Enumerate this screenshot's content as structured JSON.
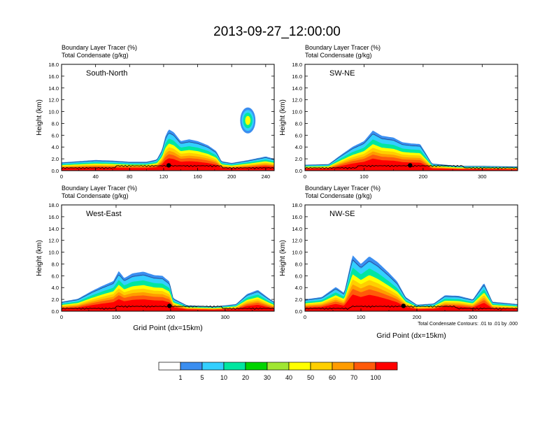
{
  "page": {
    "title": "2013-09-27_12:00:00"
  },
  "chart_data": [
    {
      "type": "heatmap",
      "panel_label": "South-North",
      "subtitle_lines": [
        "Boundary Layer Tracer   (%)",
        "Total Condensate   (g/kg)"
      ],
      "ylabel": "Height (km)",
      "xlabel": "",
      "xlim": [
        0,
        250
      ],
      "ylim": [
        0,
        18
      ],
      "xticks": [
        "0",
        "40",
        "80",
        "120",
        "160",
        "200",
        "240"
      ],
      "yticks": [
        "0.0",
        "2.0",
        "4.0",
        "6.0",
        "8.0",
        "10.0",
        "12.0",
        "14.0",
        "16.0",
        "18.0"
      ],
      "marker_x": 126,
      "tracer_profile": [
        [
          0,
          1.4
        ],
        [
          20,
          1.6
        ],
        [
          40,
          1.8
        ],
        [
          60,
          1.7
        ],
        [
          80,
          1.5
        ],
        [
          100,
          1.5
        ],
        [
          112,
          1.9
        ],
        [
          118,
          3.5
        ],
        [
          122,
          5.8
        ],
        [
          126,
          7.0
        ],
        [
          132,
          6.5
        ],
        [
          140,
          5.0
        ],
        [
          150,
          5.3
        ],
        [
          160,
          5.0
        ],
        [
          172,
          4.3
        ],
        [
          182,
          3.3
        ],
        [
          188,
          1.6
        ],
        [
          200,
          1.3
        ],
        [
          220,
          1.8
        ],
        [
          240,
          2.4
        ],
        [
          250,
          2.0
        ]
      ],
      "tracer_blobs": [
        {
          "x": 219,
          "y": 8.5,
          "dx": 9,
          "dy": 2.2
        }
      ]
    },
    {
      "type": "heatmap",
      "panel_label": "SW-NE",
      "subtitle_lines": [
        "Boundary Layer Tracer   (%)",
        "Total Condensate   (g/kg)"
      ],
      "ylabel": "Height (km)",
      "xlabel": "",
      "xlim": [
        0,
        360
      ],
      "ylim": [
        0,
        18
      ],
      "xticks": [
        "0",
        "100",
        "200",
        "300"
      ],
      "yticks": [
        "0.0",
        "2.0",
        "4.0",
        "6.0",
        "8.0",
        "10.0",
        "12.0",
        "14.0",
        "16.0",
        "18.0"
      ],
      "marker_x": 178,
      "tracer_profile": [
        [
          0,
          1.0
        ],
        [
          40,
          1.1
        ],
        [
          60,
          2.6
        ],
        [
          80,
          4.0
        ],
        [
          100,
          5.0
        ],
        [
          115,
          6.8
        ],
        [
          130,
          5.9
        ],
        [
          150,
          5.6
        ],
        [
          165,
          4.8
        ],
        [
          180,
          4.6
        ],
        [
          195,
          4.5
        ],
        [
          205,
          2.9
        ],
        [
          215,
          1.2
        ],
        [
          260,
          0.8
        ],
        [
          300,
          0.8
        ],
        [
          360,
          0.7
        ]
      ],
      "tracer_blobs": []
    },
    {
      "type": "heatmap",
      "panel_label": "West-East",
      "subtitle_lines": [
        "Boundary Layer Tracer   (%)",
        "Total Condensate   (g/kg)"
      ],
      "ylabel": "Height (km)",
      "xlabel": "Grid Point (dx=15km)",
      "xlim": [
        0,
        390
      ],
      "ylim": [
        0,
        18
      ],
      "xticks": [
        "0",
        "100",
        "200",
        "300"
      ],
      "yticks": [
        "0.0",
        "2.0",
        "4.0",
        "6.0",
        "8.0",
        "10.0",
        "12.0",
        "14.0",
        "16.0",
        "18.0"
      ],
      "marker_x": 198,
      "tracer_profile": [
        [
          0,
          1.6
        ],
        [
          30,
          2.1
        ],
        [
          55,
          3.4
        ],
        [
          75,
          4.3
        ],
        [
          95,
          5.1
        ],
        [
          105,
          6.8
        ],
        [
          115,
          5.6
        ],
        [
          130,
          6.4
        ],
        [
          150,
          6.7
        ],
        [
          170,
          6.1
        ],
        [
          185,
          6.0
        ],
        [
          198,
          5.0
        ],
        [
          205,
          2.2
        ],
        [
          230,
          1.0
        ],
        [
          280,
          0.8
        ],
        [
          320,
          1.2
        ],
        [
          340,
          2.9
        ],
        [
          360,
          3.6
        ],
        [
          380,
          2.2
        ],
        [
          390,
          1.6
        ]
      ],
      "tracer_blobs": []
    },
    {
      "type": "heatmap",
      "panel_label": "NW-SE",
      "subtitle_lines": [
        "Boundary Layer Tracer   (%)",
        "Total Condensate   (g/kg)"
      ],
      "ylabel": "Height (km)",
      "xlabel": "Grid Point (dx=15km)",
      "contour_note": "Total Condensate Contours: .01 to .01 by .000",
      "xlim": [
        0,
        380
      ],
      "ylim": [
        0,
        18
      ],
      "xticks": [
        "0",
        "100",
        "200",
        "300"
      ],
      "yticks": [
        "0.0",
        "2.0",
        "4.0",
        "6.0",
        "8.0",
        "10.0",
        "12.0",
        "14.0",
        "16.0",
        "18.0"
      ],
      "marker_x": 176,
      "tracer_profile": [
        [
          0,
          2.0
        ],
        [
          30,
          2.4
        ],
        [
          55,
          4.1
        ],
        [
          70,
          3.1
        ],
        [
          85,
          9.5
        ],
        [
          100,
          8.0
        ],
        [
          115,
          9.3
        ],
        [
          130,
          8.3
        ],
        [
          150,
          6.5
        ],
        [
          165,
          5.0
        ],
        [
          180,
          2.4
        ],
        [
          200,
          1.1
        ],
        [
          230,
          1.3
        ],
        [
          250,
          2.7
        ],
        [
          275,
          2.6
        ],
        [
          300,
          2.0
        ],
        [
          320,
          4.8
        ],
        [
          335,
          1.6
        ],
        [
          380,
          1.2
        ]
      ],
      "tracer_blobs": []
    }
  ],
  "legend": {
    "labels": [
      "1",
      "5",
      "10",
      "20",
      "30",
      "40",
      "50",
      "60",
      "70",
      "100"
    ],
    "colors": [
      "#ffffff",
      "#3b8ef0",
      "#33cfff",
      "#00e6a0",
      "#00d400",
      "#a0e632",
      "#ffff00",
      "#ffcf00",
      "#ff9c00",
      "#ff5a0a",
      "#ff0000"
    ]
  }
}
